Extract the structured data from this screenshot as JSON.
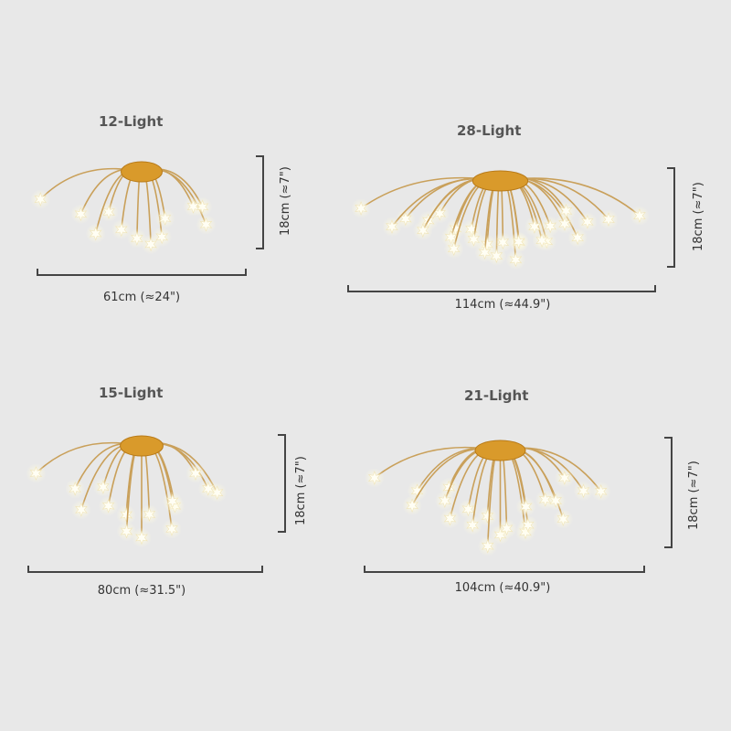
{
  "colors": {
    "background": "#e8e8e8",
    "gold": "#c9a05a",
    "base": "#d99a2b",
    "star": "#fffef4",
    "dim_line": "#444444"
  },
  "icons": [
    "chandelier-icon",
    "star-icon"
  ],
  "products": [
    {
      "id": "l12",
      "title": "12-Light",
      "width_label": "61cm (≈24\")",
      "height_label": "18cm (≈7\")",
      "arms": 12
    },
    {
      "id": "l28",
      "title": "28-Light",
      "width_label": "114cm (≈44.9\")",
      "height_label": "18cm (≈7\")",
      "arms": 28
    },
    {
      "id": "l15",
      "title": "15-Light",
      "width_label": "80cm (≈31.5\")",
      "height_label": "18cm (≈7\")",
      "arms": 15
    },
    {
      "id": "l21",
      "title": "21-Light",
      "width_label": "104cm (≈40.9\")",
      "height_label": "18cm (≈7\")",
      "arms": 21
    }
  ]
}
